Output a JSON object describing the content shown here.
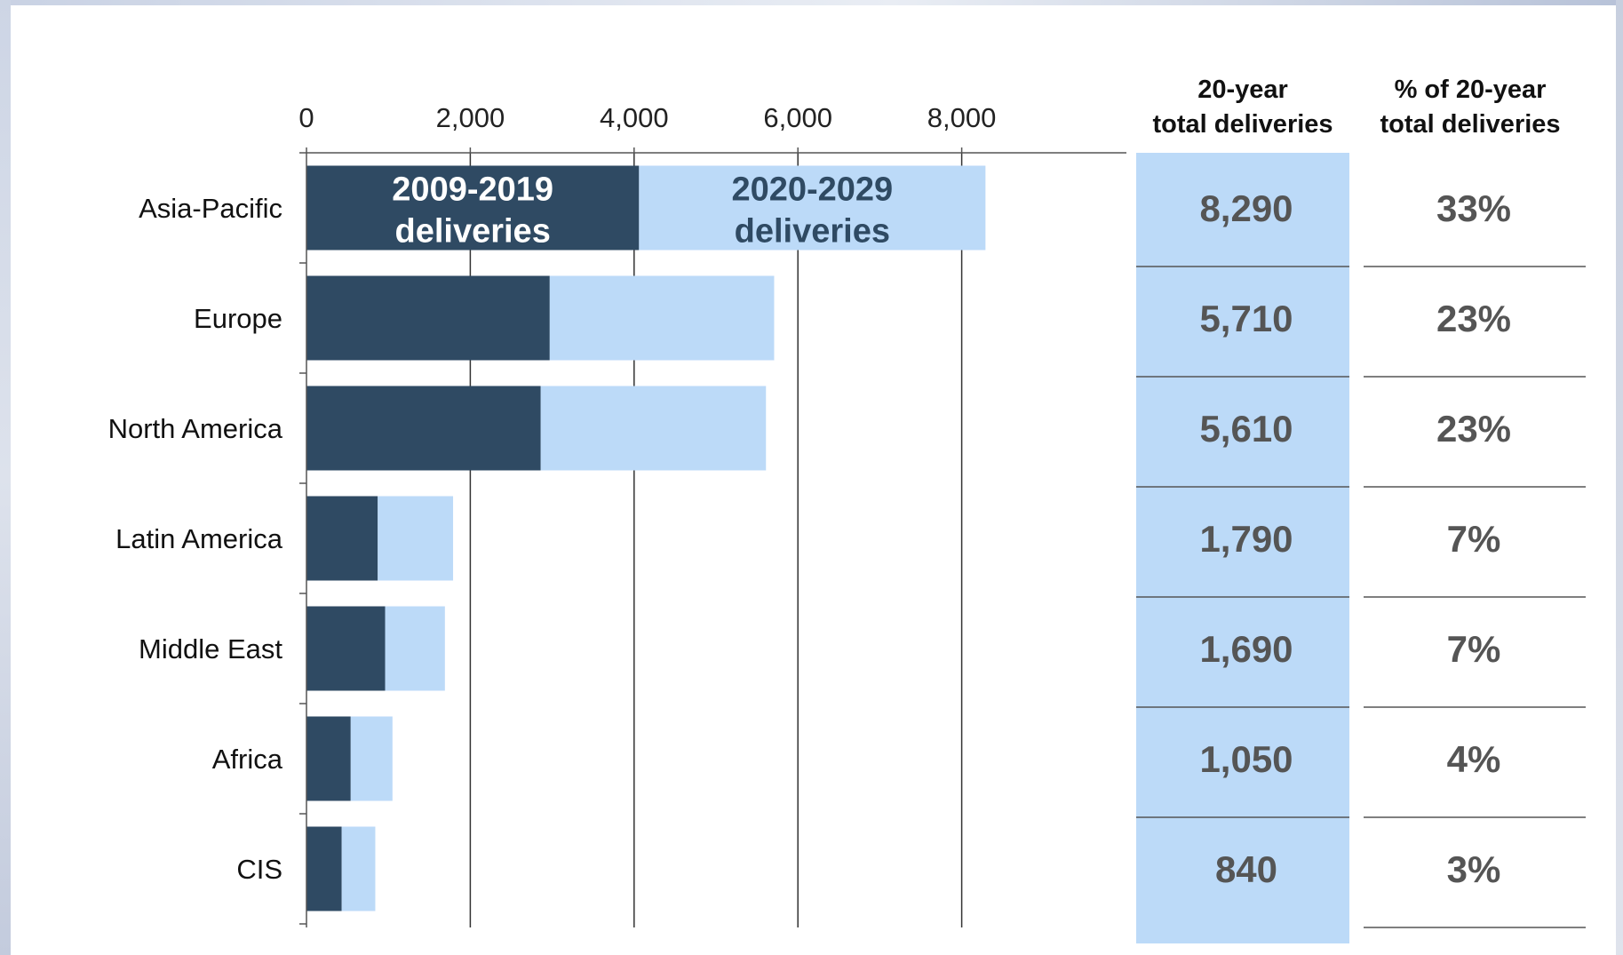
{
  "chart_data": {
    "type": "bar",
    "orientation": "horizontal",
    "stacked": true,
    "categories": [
      "Asia-Pacific",
      "Europe",
      "North America",
      "Latin America",
      "Middle East",
      "Africa",
      "CIS"
    ],
    "series": [
      {
        "name": "2009-2019\ndeliveries",
        "color": "#2f4a63",
        "values": [
          4060,
          2970,
          2860,
          870,
          960,
          540,
          430
        ]
      },
      {
        "name": "2020-2029\ndeliveries",
        "color": "#bcdaf8",
        "values": [
          4230,
          2740,
          2750,
          920,
          730,
          510,
          410
        ]
      }
    ],
    "x_ticks": [
      "0",
      "2,000",
      "4,000",
      "6,000",
      "8,000"
    ],
    "x_tick_values": [
      0,
      2000,
      4000,
      6000,
      8000
    ],
    "xlim": [
      0,
      9900
    ],
    "grid": "vertical",
    "legend_placement": "inside-first-bar",
    "table": {
      "headers": [
        "20-year\ntotal deliveries",
        "% of 20-year\ntotal deliveries"
      ],
      "totals": [
        "8,290",
        "5,710",
        "5,610",
        "1,790",
        "1,690",
        "1,050",
        "840"
      ],
      "percents": [
        "33%",
        "23%",
        "23%",
        "7%",
        "7%",
        "4%",
        "3%"
      ],
      "totals_fill": "#bcdaf8"
    }
  }
}
